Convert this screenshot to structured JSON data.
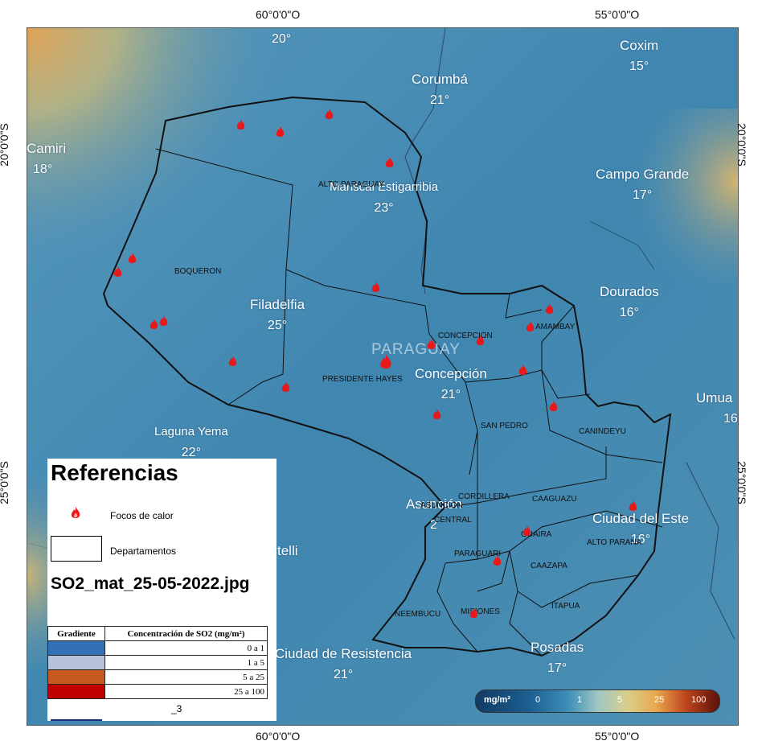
{
  "coordinates": {
    "top_left": "60°0'0\"O",
    "top_right": "55°0'0\"O",
    "bottom_left": "60°0'0\"O",
    "bottom_right": "55°0'0\"O",
    "left_top": "20°0'0\"S",
    "left_bottom": "25°0'0\"S",
    "right_top": "20°0'0\"S",
    "right_bottom": "25°0'0\"S"
  },
  "weather_cities": [
    {
      "name": "",
      "temp": "20°"
    },
    {
      "name": "Coxim",
      "temp": "15°"
    },
    {
      "name": "Corumbá",
      "temp": "21°"
    },
    {
      "name": "Camiri",
      "temp": "18°"
    },
    {
      "name": "Campo Grande",
      "temp": "17°"
    },
    {
      "name": "Mariscal Estigarribia",
      "temp": "23°"
    },
    {
      "name": "Dourados",
      "temp": "16°"
    },
    {
      "name": "Filadelfia",
      "temp": "25°"
    },
    {
      "name": "Concepción",
      "temp": "21°"
    },
    {
      "name": "Laguna Yema",
      "temp": "22°"
    },
    {
      "name": "Umua",
      "temp": "16"
    },
    {
      "name": "Asunción",
      "temp": "2"
    },
    {
      "name": "Ciudad del Este",
      "temp": "16°"
    },
    {
      "name": "Ciudad de Resistencia",
      "temp": "21°"
    },
    {
      "name": "Posadas",
      "temp": "17°"
    },
    {
      "name": "telli",
      "temp": ""
    }
  ],
  "country_label": "PARAGUAY",
  "departments": [
    "ALTO PARAGUAY",
    "BOQUERON",
    "PRESIDENTE HAYES",
    "CONCEPCION",
    "AMAMBAY",
    "SAN PEDRO",
    "CANINDEYU",
    "CORDILLERA",
    "ASUNCION",
    "CENTRAL",
    "CAAGUAZU",
    "GUAIRA",
    "ALTO PARANA",
    "PARAGUARI",
    "CAAZAPA",
    "NEEMBUCU",
    "MISIONES",
    "ITAPUA"
  ],
  "legend": {
    "title": "Referencias",
    "fire_label": "Focos de calor",
    "dept_label": "Departamentos",
    "filename": "SO2_mat_25-05-2022.jpg",
    "table_header_gradient": "Gradiente",
    "table_header_conc": "Concentración de SO2 (mg/m²)",
    "rows": [
      {
        "range": "0 a 1",
        "color": "#3370b8"
      },
      {
        "range": "1 a 5",
        "color": "#b7c3dc"
      },
      {
        "range": "5 a 25",
        "color": "#c65a1e"
      },
      {
        "range": "25 a 100",
        "color": "#c00000"
      }
    ],
    "extra": "_3"
  },
  "colorbar": {
    "unit": "mg/m²",
    "ticks": [
      "0",
      "1",
      "5",
      "25",
      "100"
    ]
  },
  "colors": {
    "fire": "#e8191a",
    "map_base": "#4a8db5",
    "border": "#111111"
  }
}
